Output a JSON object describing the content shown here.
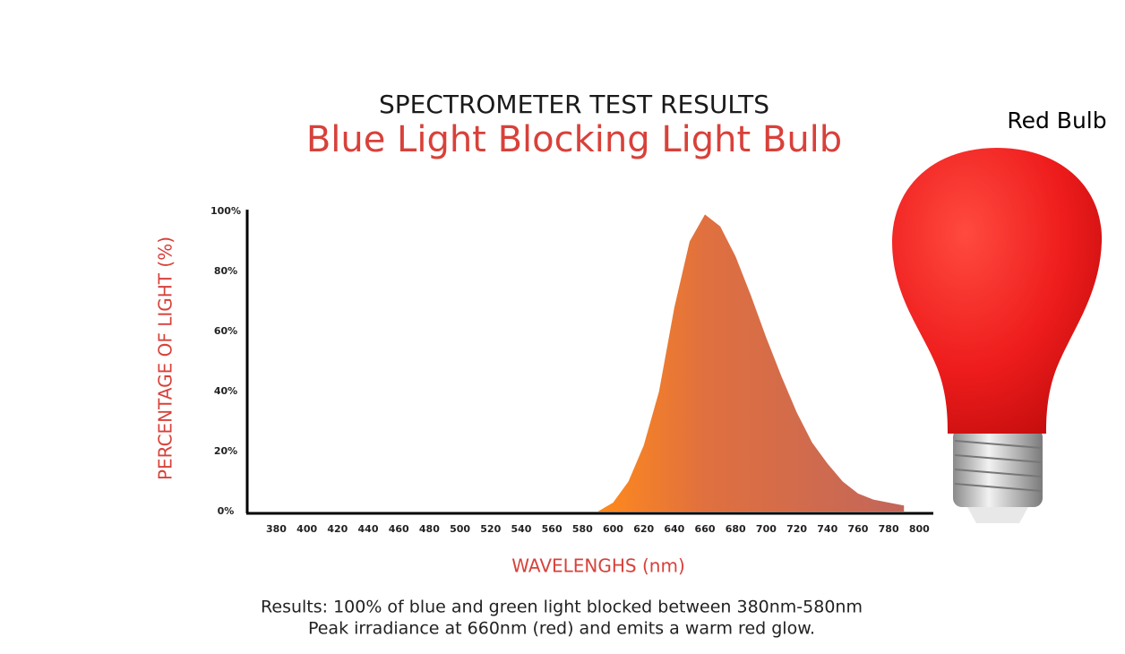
{
  "chart_data": {
    "type": "area",
    "title": "SPECTROMETER TEST RESULTS",
    "subtitle": "Blue Light Blocking Light Bulb",
    "y_label": "PERCENTAGE OF LIGHT (%)",
    "x_label": "WAVELENGHS (nm)",
    "annotations": [
      "Red Bulb",
      "Results: 100% of blue and green light blocked between 380nm-580nm",
      "Peak irradiance at 660nm (red) and emits a warm red glow."
    ],
    "x": [
      590,
      600,
      610,
      620,
      630,
      640,
      650,
      660,
      670,
      680,
      690,
      700,
      710,
      720,
      730,
      740,
      750,
      760,
      770,
      780,
      790
    ],
    "values": [
      0,
      3,
      10,
      22,
      40,
      68,
      90,
      99,
      95,
      85,
      72,
      58,
      45,
      33,
      23,
      16,
      10,
      6,
      4,
      3,
      2
    ],
    "color": "#c2665a",
    "xlim": [
      361,
      808
    ],
    "ylim": [
      0,
      100
    ],
    "xticks": [
      380,
      400,
      420,
      440,
      460,
      480,
      500,
      520,
      540,
      560,
      580,
      600,
      620,
      640,
      660,
      680,
      700,
      720,
      740,
      760,
      780,
      800
    ],
    "yticks": [
      {
        "value": 0,
        "label": "0%"
      },
      {
        "value": 20,
        "label": "20%"
      },
      {
        "value": 40,
        "label": "40%"
      },
      {
        "value": 60,
        "label": "60%"
      },
      {
        "value": 80,
        "label": "80%"
      },
      {
        "value": 100,
        "label": "100%"
      }
    ]
  }
}
